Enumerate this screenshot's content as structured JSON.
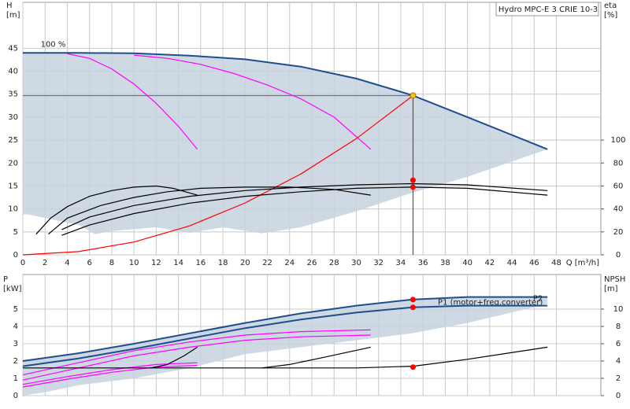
{
  "chart_data": [
    {
      "type": "line",
      "title": "Hydro MPC-E 3 CRIE 10-3",
      "annotation": "100 %",
      "ylabel": [
        "H",
        "[m]"
      ],
      "y2label": [
        "eta",
        "[%]"
      ],
      "xlabel": "Q [m³/h]",
      "xlim": [
        0,
        52
      ],
      "xticks": [
        0,
        2,
        4,
        6,
        8,
        10,
        12,
        14,
        16,
        18,
        20,
        22,
        24,
        26,
        28,
        30,
        32,
        34,
        36,
        38,
        40,
        42,
        44,
        46,
        48
      ],
      "ylim": [
        0,
        55
      ],
      "yticks": [
        0,
        5,
        10,
        15,
        20,
        25,
        30,
        35,
        40,
        45
      ],
      "y2lim": [
        0,
        220
      ],
      "y2ticks": [
        0,
        20,
        40,
        60,
        80,
        100
      ],
      "grid": true,
      "series": [
        {
          "style": "area",
          "color": "#c5d2df",
          "x": [
            0,
            5,
            10,
            15,
            20,
            25,
            30,
            35,
            40,
            47.2,
            40,
            35,
            30,
            25,
            21.5,
            18,
            15,
            12,
            8,
            6.5,
            5,
            0.5,
            0
          ],
          "values": [
            44,
            44,
            43.9,
            43.4,
            42.6,
            41,
            38.4,
            34.8,
            30,
            23,
            17,
            13.5,
            9.5,
            6,
            4.7,
            6,
            4.8,
            6,
            5.2,
            4.5,
            6.5,
            8.8,
            8.8
          ]
        },
        {
          "style": "line",
          "color": "#777777",
          "x": [
            0,
            35.1
          ],
          "values": [
            34.7,
            34.7
          ]
        },
        {
          "style": "line",
          "color": "#555555",
          "x": [
            35.1,
            35.1
          ],
          "values": [
            34.7,
            0
          ]
        },
        {
          "style": "line",
          "color": "#ff00ff",
          "x": [
            4,
            6,
            8,
            10,
            12,
            14,
            15.7
          ],
          "values": [
            43.8,
            42.8,
            40.5,
            37.2,
            33,
            28,
            23
          ]
        },
        {
          "style": "line",
          "color": "#ff00ff",
          "x": [
            10,
            13,
            16,
            19,
            22,
            25,
            28,
            31.3
          ],
          "values": [
            43.5,
            42.8,
            41.5,
            39.5,
            37,
            34,
            30,
            23
          ]
        },
        {
          "style": "line",
          "color": "#ff0000",
          "x": [
            0,
            5,
            10,
            15,
            20,
            25,
            30,
            35.1
          ],
          "values": [
            0,
            0.7,
            2.8,
            6.3,
            11.3,
            17.6,
            25.3,
            34.7
          ]
        },
        {
          "style": "line",
          "color": "#000000",
          "axis": "y2",
          "x": [
            1.2,
            2.5,
            4,
            6,
            8,
            10,
            12,
            13.5,
            15.7
          ],
          "values": [
            18,
            32,
            42,
            51,
            56,
            59,
            60,
            58,
            52
          ]
        },
        {
          "style": "line",
          "color": "#000000",
          "axis": "y2",
          "x": [
            2.3,
            4,
            7,
            10,
            13,
            16,
            20,
            24,
            28,
            31.3
          ],
          "values": [
            18,
            32,
            43,
            50,
            55,
            58,
            59,
            59,
            57,
            52
          ]
        },
        {
          "style": "line",
          "color": "#000000",
          "axis": "y2",
          "x": [
            3.5,
            6,
            10,
            15,
            20,
            25,
            30,
            35,
            40,
            47.2
          ],
          "values": [
            22,
            33,
            43,
            51,
            56,
            59,
            61,
            62,
            61,
            56
          ]
        },
        {
          "style": "line",
          "color": "#000000",
          "axis": "y2",
          "x": [
            3.5,
            6,
            10,
            15,
            20,
            25,
            30,
            35,
            40,
            47.2
          ],
          "values": [
            17,
            26,
            36,
            45,
            51,
            55,
            58,
            59,
            58,
            52
          ]
        },
        {
          "style": "line",
          "color": "#1f4e8c",
          "x": [
            0,
            5,
            10,
            15,
            20,
            25,
            30,
            35,
            40,
            47.2
          ],
          "values": [
            44,
            44,
            43.9,
            43.4,
            42.6,
            41,
            38.4,
            34.8,
            30,
            23
          ]
        },
        {
          "style": "points",
          "color": "#ff0000",
          "axis": "y2",
          "x": [
            35.1,
            35.1
          ],
          "values": [
            65,
            59
          ]
        },
        {
          "style": "points",
          "color": "#f5c518",
          "x": [
            35.1
          ],
          "values": [
            34.7
          ]
        }
      ]
    },
    {
      "type": "line",
      "ylabel": [
        "P",
        "[kW]"
      ],
      "y2label": [
        "NPSH",
        "[m]"
      ],
      "xlim": [
        0,
        52
      ],
      "ylim": [
        0,
        7
      ],
      "yticks": [
        0,
        1,
        2,
        3,
        4,
        5
      ],
      "y2lim": [
        0,
        14
      ],
      "y2ticks": [
        0,
        2,
        4,
        6,
        8,
        10
      ],
      "grid": true,
      "series": [
        {
          "style": "area",
          "color": "#c5d2df",
          "x": [
            0,
            10,
            20,
            30,
            35,
            40,
            47.2,
            47.2,
            40,
            35,
            30,
            20,
            15,
            10,
            5,
            2,
            0
          ],
          "values": [
            2,
            3,
            4.2,
            5.2,
            5.6,
            5.72,
            5.7,
            5.3,
            4.2,
            3.6,
            3.2,
            2.4,
            1.6,
            1,
            0.6,
            0.2,
            0
          ]
        },
        {
          "style": "line",
          "color": "#ff00ff",
          "x": [
            0,
            5,
            10,
            15,
            20,
            25,
            31.3
          ],
          "values": [
            1.2,
            1.9,
            2.6,
            3.1,
            3.5,
            3.7,
            3.8
          ]
        },
        {
          "style": "line",
          "color": "#ff00ff",
          "x": [
            0,
            5,
            10,
            15,
            20,
            25,
            31.3
          ],
          "values": [
            0.9,
            1.6,
            2.3,
            2.8,
            3.2,
            3.4,
            3.5
          ]
        },
        {
          "style": "line",
          "color": "#ff00ff",
          "x": [
            0,
            4,
            8,
            12,
            15.7
          ],
          "values": [
            0.65,
            1.1,
            1.5,
            1.8,
            1.9
          ]
        },
        {
          "style": "line",
          "color": "#ff00ff",
          "x": [
            0,
            4,
            8,
            12,
            15.7
          ],
          "values": [
            0.5,
            0.95,
            1.35,
            1.65,
            1.75
          ]
        },
        {
          "style": "line",
          "color": "#000000",
          "axis": "y2",
          "x": [
            0,
            10,
            20,
            30,
            35.1,
            40,
            47.2
          ],
          "values": [
            3.2,
            3.2,
            3.2,
            3.2,
            3.4,
            4.2,
            5.6
          ]
        },
        {
          "style": "line",
          "color": "#000000",
          "axis": "y2",
          "x": [
            11.5,
            13,
            14.5,
            15.7
          ],
          "values": [
            3.2,
            3.6,
            4.6,
            5.6
          ]
        },
        {
          "style": "line",
          "color": "#000000",
          "axis": "y2",
          "x": [
            21.5,
            24,
            27,
            31.3
          ],
          "values": [
            3.2,
            3.6,
            4.4,
            5.6
          ]
        },
        {
          "name": "P1 (motor+freq.converter)",
          "style": "line",
          "color": "#1f4e8c",
          "x": [
            0,
            5,
            10,
            15,
            20,
            25,
            30,
            35,
            40,
            47.2
          ],
          "values": [
            2,
            2.45,
            3,
            3.6,
            4.2,
            4.75,
            5.2,
            5.55,
            5.7,
            5.7
          ]
        },
        {
          "name": "P2",
          "style": "line",
          "color": "#1f4e8c",
          "x": [
            0,
            5,
            10,
            15,
            20,
            25,
            30,
            35,
            40,
            47.2
          ],
          "values": [
            1.7,
            2.15,
            2.7,
            3.3,
            3.9,
            4.4,
            4.8,
            5.1,
            5.2,
            5.2
          ]
        },
        {
          "style": "points",
          "color": "#ff0000",
          "x": [
            35.1,
            35.1
          ],
          "values": [
            5.55,
            5.1
          ]
        },
        {
          "style": "points",
          "color": "#ff0000",
          "axis": "y2",
          "x": [
            35.1
          ],
          "values": [
            3.3
          ]
        }
      ]
    }
  ]
}
